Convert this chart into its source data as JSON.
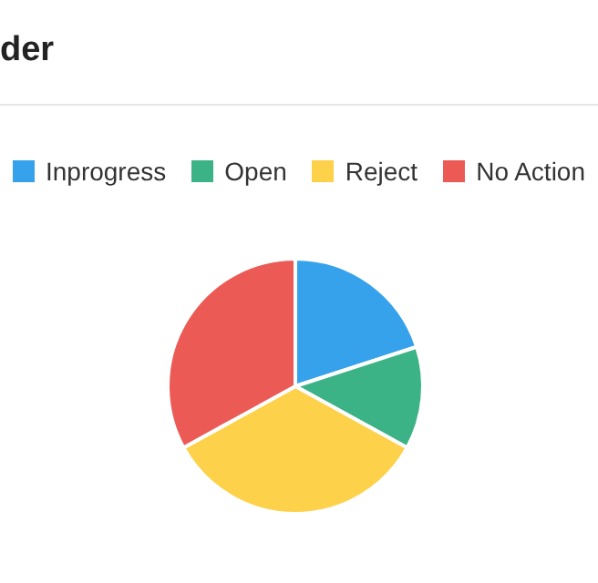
{
  "chart_data": {
    "type": "pie",
    "title": "der",
    "categories": [
      "Inprogress",
      "Open",
      "Reject",
      "No Action"
    ],
    "values": [
      20,
      13,
      34,
      33
    ],
    "colors": [
      "#36a2eb",
      "#3cb386",
      "#fdd14a",
      "#ec5a55"
    ],
    "legend": "top"
  }
}
